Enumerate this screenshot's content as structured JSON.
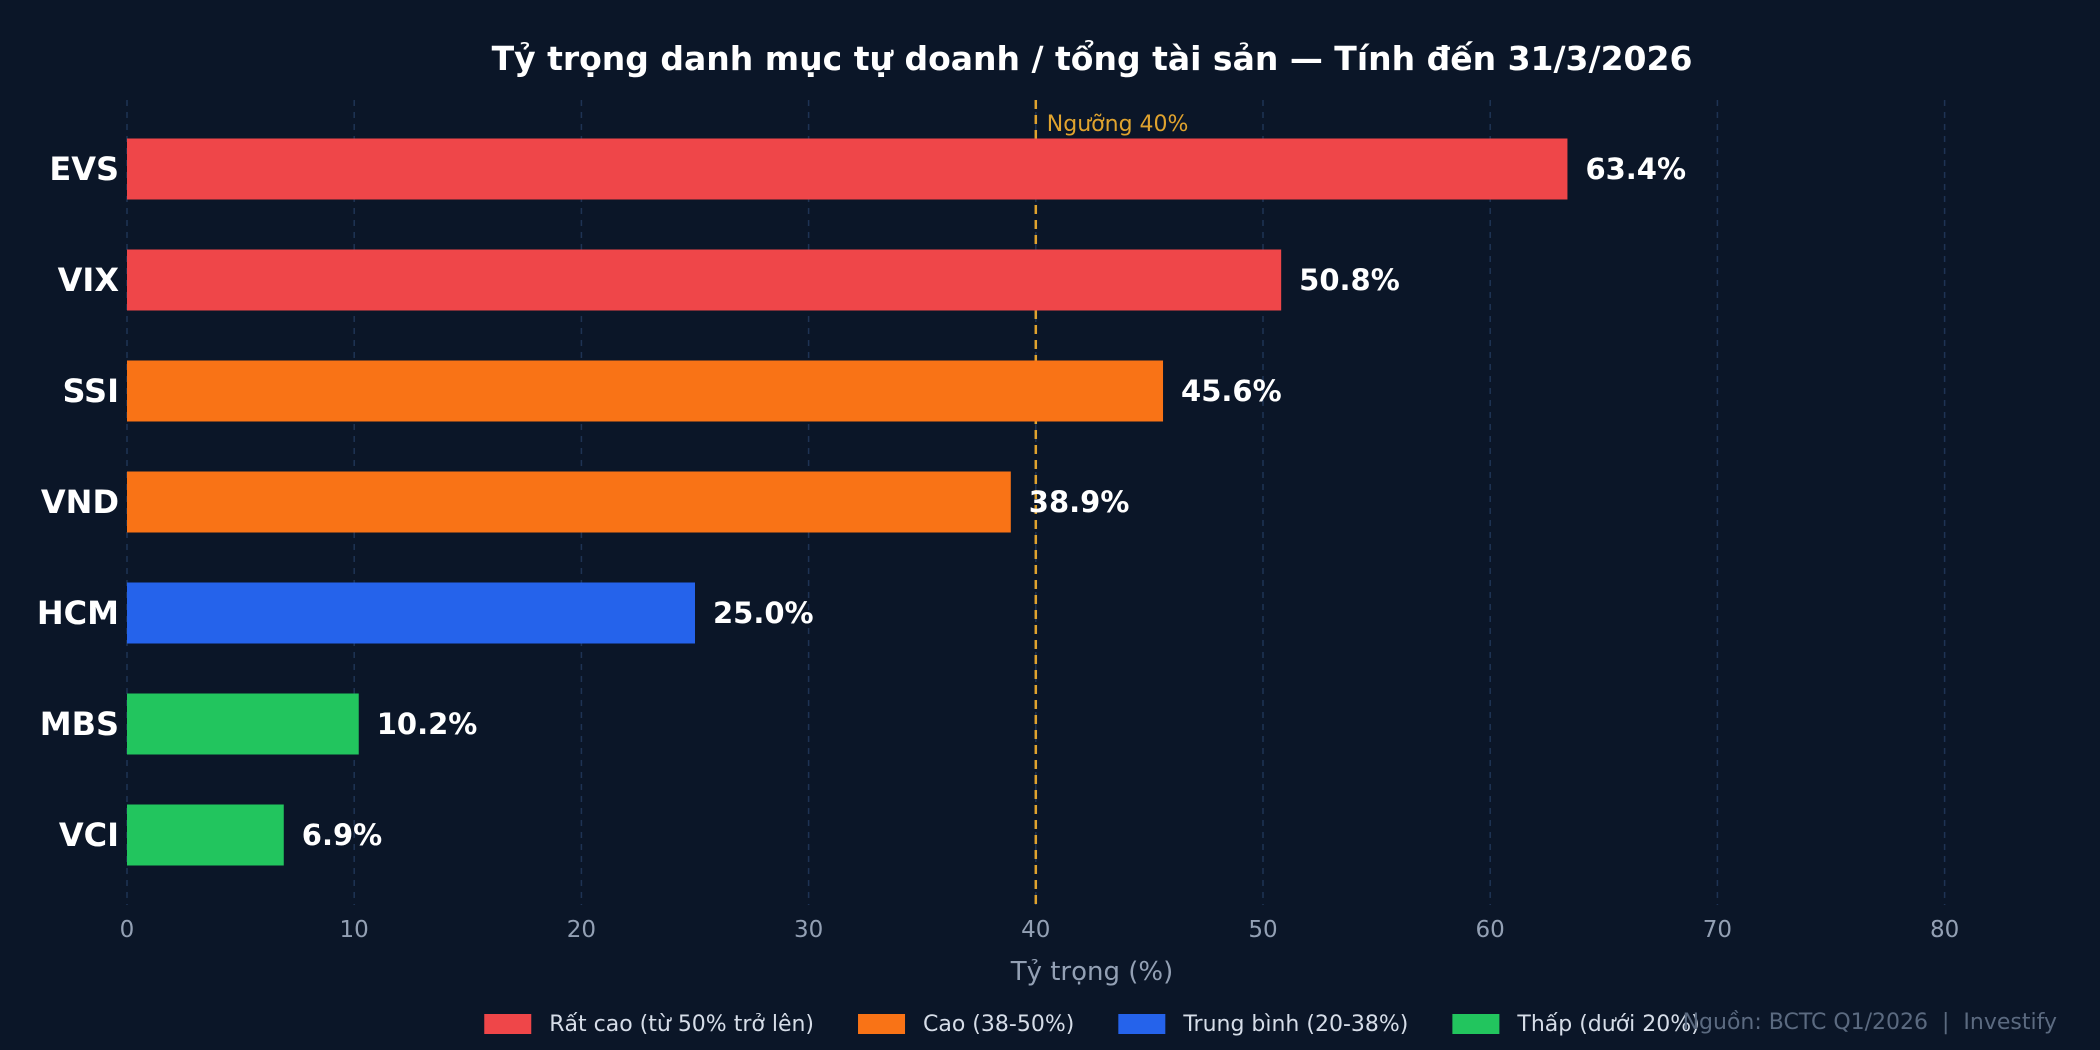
{
  "chart_data": {
    "type": "bar",
    "orientation": "horizontal",
    "title": "Tỷ trọng danh mục tự doanh / tổng tài sản — Tính đến 31/3/2026",
    "xlabel": "Tỷ trọng (%)",
    "ylabel": "",
    "xlim": [
      0,
      85
    ],
    "xticks": [
      0,
      10,
      20,
      30,
      40,
      50,
      60,
      70,
      80
    ],
    "grid": "vertical dashed",
    "categories": [
      "EVS",
      "VIX",
      "SSI",
      "VND",
      "HCM",
      "MBS",
      "VCI"
    ],
    "values": [
      63.4,
      50.8,
      45.6,
      38.9,
      25.0,
      10.2,
      6.9
    ],
    "value_labels": [
      "63.4%",
      "50.8%",
      "45.6%",
      "38.9%",
      "25.0%",
      "10.2%",
      "6.9%"
    ],
    "bar_groups": [
      "very_high",
      "very_high",
      "high",
      "high",
      "medium",
      "low",
      "low"
    ],
    "threshold": {
      "value": 40,
      "label": "Ngưỡng 40%",
      "color": "#e0a32e"
    },
    "legend_position": "bottom-center",
    "legend": [
      {
        "key": "very_high",
        "label": "Rất cao (từ 50% trở lên)",
        "color": "#ef4649"
      },
      {
        "key": "high",
        "label": "Cao (38-50%)",
        "color": "#f97316"
      },
      {
        "key": "medium",
        "label": "Trung bình (20-38%)",
        "color": "#2563eb"
      },
      {
        "key": "low",
        "label": "Thấp (dưới 20%)",
        "color": "#22c55e"
      }
    ],
    "source": "Nguồn: BCTC Q1/2026  |  Investify"
  },
  "colors": {
    "background": "#0b1628",
    "grid": "#1e3354",
    "text": "#ffffff",
    "muted_text": "#93a0b4"
  }
}
